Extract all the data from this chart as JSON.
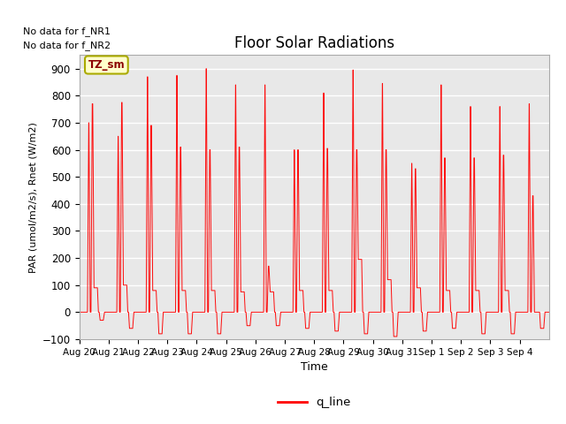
{
  "title": "Floor Solar Radiations",
  "xlabel": "Time",
  "ylabel": "PAR (umol/m2/s), Rnet (W/m2)",
  "ylim": [
    -100,
    950
  ],
  "yticks": [
    -100,
    0,
    100,
    200,
    300,
    400,
    500,
    600,
    700,
    800,
    900
  ],
  "line_color": "red",
  "line_label": "q_line",
  "legend_label_box": "TZ_sm",
  "legend_box_facecolor": "#ffffcc",
  "legend_box_edgecolor": "#aaaa00",
  "annotation_lines": [
    "No data for f_NR1",
    "No data for f_NR2"
  ],
  "num_days": 16,
  "xtick_labels": [
    "Aug 20",
    "Aug 21",
    "Aug 22",
    "Aug 23",
    "Aug 24",
    "Aug 25",
    "Aug 26",
    "Aug 27",
    "Aug 28",
    "Aug 29",
    "Aug 30",
    "Aug 31",
    "Sep 1",
    "Sep 2",
    "Sep 3",
    "Sep 4"
  ],
  "bg_color": "#e8e8e8",
  "grid_color": "white",
  "daily_patterns": [
    {
      "peak1": 700,
      "peak2": 770,
      "plateau": 90,
      "neg": -30
    },
    {
      "peak1": 650,
      "peak2": 775,
      "plateau": 100,
      "neg": -60
    },
    {
      "peak1": 870,
      "peak2": 690,
      "plateau": 80,
      "neg": -80
    },
    {
      "peak1": 875,
      "peak2": 610,
      "plateau": 80,
      "neg": -80
    },
    {
      "peak1": 900,
      "peak2": 600,
      "plateau": 80,
      "neg": -80
    },
    {
      "peak1": 840,
      "peak2": 610,
      "plateau": 75,
      "neg": -50
    },
    {
      "peak1": 840,
      "peak2": 170,
      "plateau": 75,
      "neg": -50
    },
    {
      "peak1": 600,
      "peak2": 600,
      "plateau": 80,
      "neg": -60
    },
    {
      "peak1": 810,
      "peak2": 605,
      "plateau": 80,
      "neg": -70
    },
    {
      "peak1": 895,
      "peak2": 600,
      "plateau": 195,
      "neg": -80
    },
    {
      "peak1": 845,
      "peak2": 600,
      "plateau": 120,
      "neg": -90
    },
    {
      "peak1": 550,
      "peak2": 530,
      "plateau": 90,
      "neg": -70
    },
    {
      "peak1": 840,
      "peak2": 570,
      "plateau": 80,
      "neg": -60
    },
    {
      "peak1": 760,
      "peak2": 570,
      "plateau": 80,
      "neg": -80
    },
    {
      "peak1": 760,
      "peak2": 580,
      "plateau": 80,
      "neg": -80
    },
    {
      "peak1": 770,
      "peak2": 430,
      "plateau": 0,
      "neg": -60
    }
  ]
}
